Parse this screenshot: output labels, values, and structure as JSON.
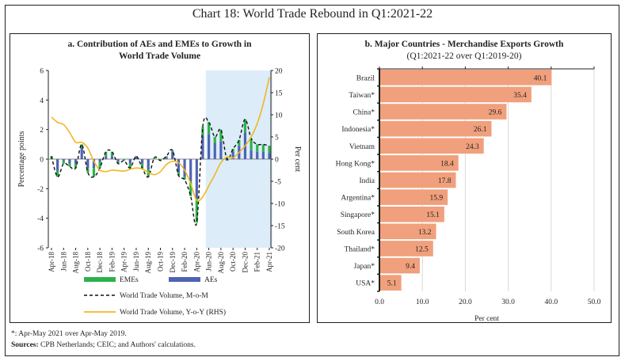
{
  "title": "Chart 18: World Trade Rebound in Q1:2021-22",
  "footnote": "*: Apr-May 2021 over Apr-May 2019.",
  "sources_label": "Sources:",
  "sources_text": "CPB Netherlands; CEIC; and Authors' calculations.",
  "colors": {
    "emes": "#2bb24c",
    "aes": "#4f63b4",
    "mom": "#111111",
    "yoy": "#f2b621",
    "shade": "#dcedf9",
    "bar": "#f0a07c",
    "grid": "#d9d9d9"
  },
  "chart_data": [
    {
      "type": "bar",
      "title": "a. Contribution of AEs and EMEs to Growth in",
      "title_line2": "World Trade Volume",
      "ylabel": "Percentage points",
      "ylabel_right": "Per cent",
      "ylim": [
        -6,
        6
      ],
      "ylim_right": [
        -20,
        20
      ],
      "yticks": [
        "6",
        "4",
        "2",
        "0",
        "-2",
        "-4",
        "-6"
      ],
      "yticks_right": [
        "20",
        "15",
        "10",
        "5",
        "0",
        "-5",
        "-10",
        "-15",
        "-20"
      ],
      "xtick_labels": [
        "Apr-18",
        "Jun-18",
        "Aug-18",
        "Oct-18",
        "Dec-18",
        "Feb-19",
        "Apr-19",
        "Jun-19",
        "Aug-19",
        "Oct-19",
        "Dec-19",
        "Feb-20",
        "Apr-20",
        "Jun-20",
        "Aug-20",
        "Oct-20",
        "Dec-20",
        "Feb-21",
        "Apr-21"
      ],
      "shaded_from": "Jun-20",
      "shaded_to": "Apr-21",
      "categories": [
        "Apr-18",
        "May-18",
        "Jun-18",
        "Jul-18",
        "Aug-18",
        "Sep-18",
        "Oct-18",
        "Nov-18",
        "Dec-18",
        "Jan-19",
        "Feb-19",
        "Mar-19",
        "Apr-19",
        "May-19",
        "Jun-19",
        "Jul-19",
        "Aug-19",
        "Sep-19",
        "Oct-19",
        "Nov-19",
        "Dec-19",
        "Jan-20",
        "Feb-20",
        "Mar-20",
        "Apr-20",
        "May-20",
        "Jun-20",
        "Jul-20",
        "Aug-20",
        "Sep-20",
        "Oct-20",
        "Nov-20",
        "Dec-20",
        "Jan-21",
        "Feb-21",
        "Mar-21",
        "Apr-21"
      ],
      "series": [
        {
          "name": "EMEs",
          "kind": "stacked-bar",
          "values": [
            0.2,
            -0.4,
            -0.2,
            -0.2,
            -0.3,
            0.2,
            -0.3,
            -0.6,
            -0.4,
            0.3,
            0.3,
            -0.1,
            -0.1,
            -0.3,
            0.0,
            -0.3,
            -0.5,
            0.1,
            -0.1,
            0.1,
            0.1,
            -0.2,
            -0.2,
            -1.0,
            -1.6,
            0.6,
            0.8,
            0.4,
            0.8,
            -0.1,
            0.2,
            0.4,
            0.9,
            0.8,
            0.5,
            0.5,
            0.5
          ]
        },
        {
          "name": "AEs",
          "kind": "stacked-bar",
          "values": [
            0.0,
            -0.8,
            -0.1,
            -0.3,
            -0.3,
            0.8,
            -0.6,
            -0.6,
            -0.2,
            0.2,
            0.2,
            -0.2,
            0.0,
            -0.3,
            0.2,
            -0.3,
            -0.7,
            0.0,
            0.0,
            0.1,
            0.5,
            -0.9,
            -1.2,
            -1.5,
            -2.7,
            1.6,
            1.7,
            1.1,
            1.2,
            0.1,
            0.5,
            0.9,
            1.8,
            0.6,
            0.5,
            0.5,
            0.4
          ]
        },
        {
          "name": "World Trade Volume, M-o-M",
          "kind": "line-dashed",
          "axis": "left",
          "values": [
            0.2,
            -1.2,
            -0.3,
            -0.5,
            -0.6,
            1.0,
            -0.9,
            -1.2,
            -0.6,
            0.5,
            0.5,
            -0.3,
            -0.1,
            -0.6,
            0.2,
            -0.6,
            -1.2,
            0.1,
            -0.1,
            0.2,
            0.6,
            -1.1,
            -1.4,
            -2.5,
            -4.3,
            2.2,
            2.5,
            1.5,
            2.0,
            0.0,
            0.7,
            1.3,
            2.7,
            1.4,
            1.0,
            1.0,
            0.9
          ]
        },
        {
          "name": "World Trade Volume, Y-o-Y (RHS)",
          "kind": "line",
          "axis": "right",
          "values": [
            9.5,
            8.3,
            7.8,
            6.0,
            3.8,
            3.8,
            2.5,
            -0.5,
            -2.5,
            -2.8,
            -2.5,
            -2.6,
            -2.7,
            -2.3,
            -2.0,
            -2.2,
            -3.0,
            -3.5,
            -2.8,
            -1.2,
            -0.5,
            -0.8,
            -2.5,
            -5.5,
            -9.3,
            -8.5,
            -6.0,
            -3.5,
            -0.8,
            0.5,
            0.3,
            1.5,
            3.0,
            5.0,
            8.0,
            12.5,
            18.5
          ]
        }
      ],
      "legend": [
        "EMEs",
        "AEs",
        "World Trade Volume, M-o-M",
        "World Trade Volume, Y-o-Y (RHS)"
      ],
      "legend_position": "bottom"
    },
    {
      "type": "bar",
      "orientation": "horizontal",
      "title": "b. Major Countries -  Merchandise Exports Growth",
      "subtitle": "(Q1:2021-22 over Q1:2019-20)",
      "xlabel": "Per cent",
      "xlim": [
        0,
        50
      ],
      "xticks": [
        "0.0",
        "10.0",
        "20.0",
        "30.0",
        "40.0",
        "50.0"
      ],
      "grid": true,
      "categories": [
        "Brazil",
        "Taiwan*",
        "China*",
        "Indonesia*",
        "Vietnam",
        "Hong Kong*",
        "India",
        "Argentina*",
        "Singapore*",
        "South Korea",
        "Thailand*",
        "Japan*",
        "USA*"
      ],
      "values": [
        40.1,
        35.4,
        29.6,
        26.1,
        24.3,
        18.4,
        17.8,
        15.9,
        15.1,
        13.2,
        12.5,
        9.4,
        5.1
      ],
      "data_labels": [
        "40.1",
        "35.4",
        "29.6",
        "26.1",
        "24.3",
        "18.4",
        "17.8",
        "15.9",
        "15.1",
        "13.2",
        "12.5",
        "9.4",
        "5.1"
      ]
    }
  ]
}
